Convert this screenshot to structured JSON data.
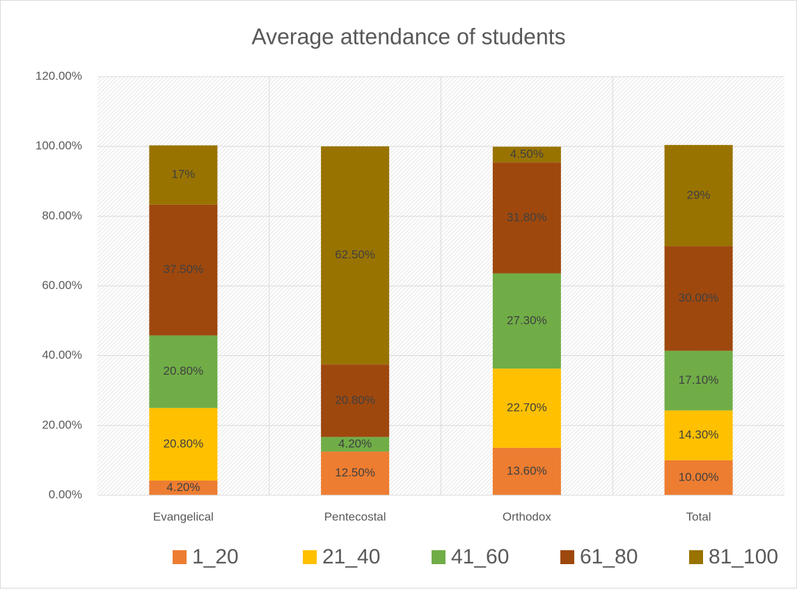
{
  "chart_data": {
    "type": "stacked_bar",
    "title": "Average attendance of students",
    "categories": [
      "Evangelical",
      "Pentecostal",
      "Orthodox",
      "Total"
    ],
    "series": [
      {
        "name": "1_20",
        "color": "#ED7D31",
        "values": [
          4.2,
          12.5,
          13.6,
          10.0
        ],
        "value_labels": [
          "4.20%",
          "12.50%",
          "13.60%",
          "10.00%"
        ]
      },
      {
        "name": "21_40",
        "color": "#FFC000",
        "values": [
          20.8,
          null,
          22.7,
          14.3
        ],
        "value_labels": [
          "20.80%",
          null,
          "22.70%",
          "14.30%"
        ]
      },
      {
        "name": "41_60",
        "color": "#70AD47",
        "values": [
          20.8,
          4.2,
          27.3,
          17.1
        ],
        "value_labels": [
          "20.80%",
          "4.20%",
          "27.30%",
          "17.10%"
        ]
      },
      {
        "name": "61_80",
        "color": "#9E480E",
        "values": [
          37.5,
          20.8,
          31.8,
          30.0
        ],
        "value_labels": [
          "37.50%",
          "20.80%",
          "31.80%",
          "30.00%"
        ]
      },
      {
        "name": "81_100",
        "color": "#997300",
        "values": [
          17,
          62.5,
          4.5,
          29
        ],
        "value_labels": [
          "17%",
          "62.50%",
          "4.50%",
          "29%"
        ]
      }
    ],
    "ylim": [
      0,
      120
    ],
    "yticks": [
      {
        "value": 0,
        "label": "0.00%"
      },
      {
        "value": 20,
        "label": "20.00%"
      },
      {
        "value": 40,
        "label": "40.00%"
      },
      {
        "value": 60,
        "label": "60.00%"
      },
      {
        "value": 80,
        "label": "80.00%"
      },
      {
        "value": 100,
        "label": "100.00%"
      },
      {
        "value": 120,
        "label": "120.00%"
      }
    ],
    "grid": true,
    "legend": "bottom"
  }
}
